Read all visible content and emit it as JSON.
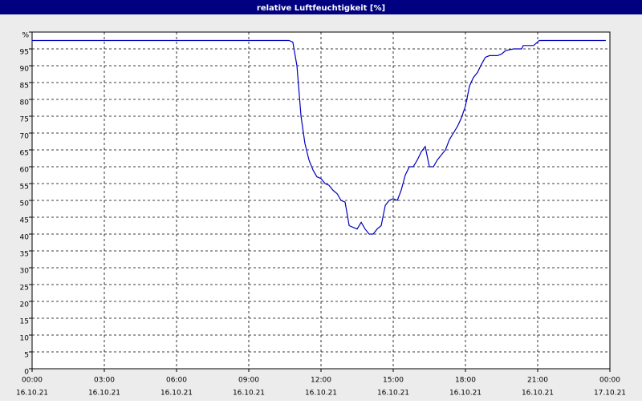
{
  "chart_data": {
    "type": "line",
    "title": "relative Luftfeuchtigkeit [%]",
    "x": [
      0,
      10.67,
      10.83,
      11.0,
      11.17,
      11.33,
      11.5,
      11.67,
      11.83,
      12.0,
      12.17,
      12.33,
      12.5,
      12.67,
      12.83,
      13.0,
      13.17,
      13.5,
      13.67,
      13.83,
      14.0,
      14.17,
      14.33,
      14.5,
      14.67,
      14.83,
      15.0,
      15.17,
      15.33,
      15.5,
      15.67,
      15.83,
      16.0,
      16.17,
      16.33,
      16.5,
      16.67,
      16.83,
      17.0,
      17.17,
      17.33,
      17.5,
      17.67,
      17.83,
      18.0,
      18.17,
      18.33,
      18.5,
      18.67,
      18.83,
      19.0,
      19.33,
      19.5,
      19.67,
      20.0,
      20.33,
      20.4,
      20.83,
      21.07,
      23.83
    ],
    "series": [
      {
        "name": "relative Luftfeuchtigkeit",
        "color": "#0000c0",
        "values": [
          97.5,
          97.5,
          97,
          90,
          75,
          67,
          62,
          59,
          57,
          56.5,
          55,
          54.5,
          53,
          52,
          50,
          49.5,
          42.5,
          41.5,
          43.5,
          41.5,
          40,
          40,
          41.5,
          42.5,
          48.5,
          50,
          50.5,
          50,
          53,
          57.5,
          60,
          60,
          62,
          64.5,
          66,
          60,
          60,
          62,
          63.5,
          65,
          68,
          70,
          72,
          74.5,
          78,
          84,
          86.5,
          88,
          90.5,
          92.5,
          93,
          93,
          93.5,
          94.5,
          95,
          95,
          96,
          96,
          97.5,
          97.5
        ]
      }
    ],
    "xlim": [
      0,
      24
    ],
    "xticks": [
      {
        "value": 0,
        "label": "00:00",
        "date": "16.10.21"
      },
      {
        "value": 3,
        "label": "03:00",
        "date": "16.10.21"
      },
      {
        "value": 6,
        "label": "06:00",
        "date": "16.10.21"
      },
      {
        "value": 9,
        "label": "09:00",
        "date": "16.10.21"
      },
      {
        "value": 12,
        "label": "12:00",
        "date": "16.10.21"
      },
      {
        "value": 15,
        "label": "15:00",
        "date": "16.10.21"
      },
      {
        "value": 18,
        "label": "18:00",
        "date": "16.10.21"
      },
      {
        "value": 21,
        "label": "21:00",
        "date": "16.10.21"
      },
      {
        "value": 24,
        "label": "00:00",
        "date": "17.10.21"
      }
    ],
    "ylim": [
      0,
      100
    ],
    "yticks": [
      0,
      5,
      10,
      15,
      20,
      25,
      30,
      35,
      40,
      45,
      50,
      55,
      60,
      65,
      70,
      75,
      80,
      85,
      90,
      95,
      {
        "value": 100,
        "label": "%"
      }
    ],
    "grid": true
  }
}
